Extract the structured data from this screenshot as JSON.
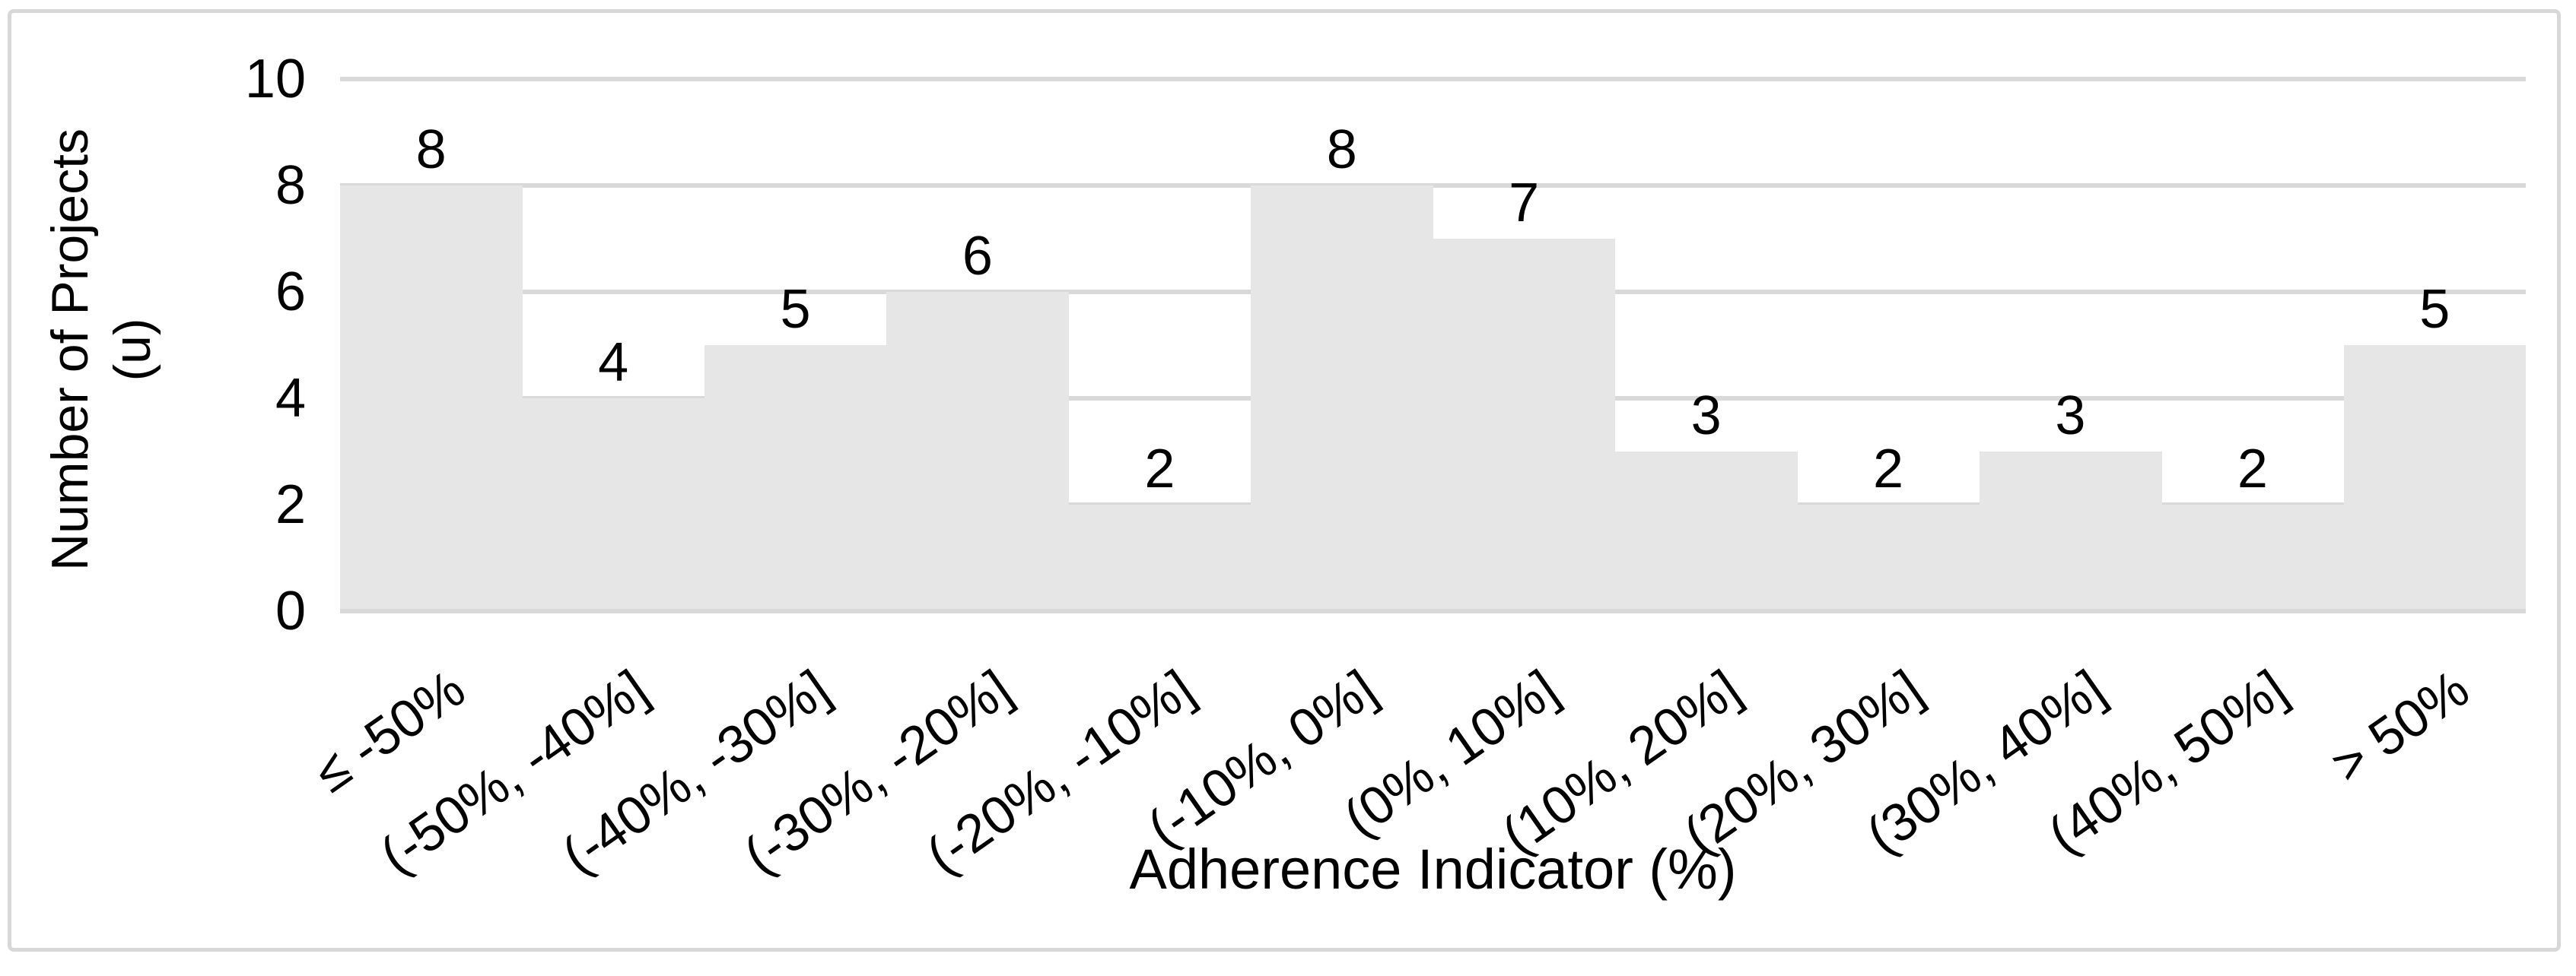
{
  "chart_data": {
    "type": "bar",
    "title": "",
    "categories": [
      "≤ -50%",
      "(-50%, -40%]",
      "(-40%, -30%]",
      "(-30%, -20%]",
      "(-20%, -10%]",
      "(-10%, 0%]",
      "(0%, 10%]",
      "(10%, 20%]",
      "(20%, 30%]",
      "(30%, 40%]",
      "(40%, 50%]",
      "> 50%"
    ],
    "values": [
      8,
      4,
      5,
      6,
      2,
      8,
      7,
      3,
      2,
      3,
      2,
      5
    ],
    "data_labels": [
      8,
      4,
      5,
      6,
      2,
      8,
      7,
      3,
      2,
      3,
      2,
      5
    ],
    "xlabel": "Adherence Indicator (%)",
    "ylabel": "Number of Projects (u)",
    "ylabel_lines": [
      "Number of Projects",
      "(u)"
    ],
    "ylim": [
      0,
      10
    ],
    "yticks": [
      0,
      2,
      4,
      6,
      8,
      10
    ],
    "grid": "horizontal",
    "legend": "none",
    "bar_gap_percent": 0,
    "category_label_rotation_deg": -35,
    "colors": {
      "bar_fill": "#e6e6e6",
      "gridline": "#d9d9d9",
      "figure_border": "#d8d8d8",
      "text": "#000000",
      "background": "#ffffff"
    }
  }
}
